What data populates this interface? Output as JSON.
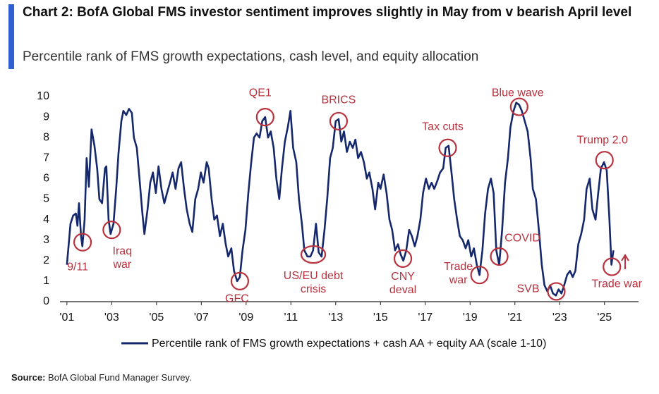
{
  "chart_data": {
    "type": "line",
    "title": "Chart 2: BofA Global FMS investor sentiment improves slightly in May from v bearish April level",
    "subtitle": "Percentile rank of FMS growth expectations, cash level, and equity allocation",
    "x": [
      2001.0,
      2001.16,
      2001.28,
      2001.4,
      2001.47,
      2001.54,
      2001.63,
      2001.69,
      2001.79,
      2001.88,
      2001.98,
      2002.1,
      2002.23,
      2002.35,
      2002.45,
      2002.57,
      2002.7,
      2002.76,
      2002.86,
      2002.95,
      2003.08,
      2003.2,
      2003.3,
      2003.43,
      2003.52,
      2003.65,
      2003.77,
      2003.9,
      2003.99,
      2004.12,
      2004.24,
      2004.37,
      2004.46,
      2004.6,
      2004.72,
      2004.84,
      2004.97,
      2005.09,
      2005.22,
      2005.35,
      2005.47,
      2005.6,
      2005.72,
      2005.85,
      2005.98,
      2006.1,
      2006.23,
      2006.35,
      2006.48,
      2006.6,
      2006.73,
      2006.86,
      2006.98,
      2007.1,
      2007.24,
      2007.33,
      2007.46,
      2007.58,
      2007.7,
      2007.83,
      2007.96,
      2008.09,
      2008.2,
      2008.34,
      2008.46,
      2008.6,
      2008.72,
      2008.84,
      2008.97,
      2009.1,
      2009.22,
      2009.35,
      2009.47,
      2009.6,
      2009.72,
      2009.85,
      2009.98,
      2010.1,
      2010.23,
      2010.35,
      2010.48,
      2010.6,
      2010.73,
      2010.86,
      2010.98,
      2011.1,
      2011.24,
      2011.36,
      2011.49,
      2011.6,
      2011.74,
      2011.87,
      2011.99,
      2012.12,
      2012.24,
      2012.37,
      2012.5,
      2012.62,
      2012.75,
      2012.87,
      2013.0,
      2013.13,
      2013.25,
      2013.37,
      2013.5,
      2013.63,
      2013.76,
      2013.88,
      2014.0,
      2014.13,
      2014.26,
      2014.39,
      2014.5,
      2014.64,
      2014.76,
      2014.9,
      2015.0,
      2015.14,
      2015.27,
      2015.4,
      2015.52,
      2015.65,
      2015.78,
      2015.9,
      2016.02,
      2016.15,
      2016.28,
      2016.4,
      2016.53,
      2016.65,
      2016.78,
      2016.9,
      2017.03,
      2017.16,
      2017.28,
      2017.4,
      2017.54,
      2017.66,
      2017.8,
      2017.91,
      2018.04,
      2018.17,
      2018.29,
      2018.42,
      2018.54,
      2018.67,
      2018.8,
      2018.92,
      2019.05,
      2019.17,
      2019.3,
      2019.42,
      2019.55,
      2019.67,
      2019.8,
      2019.93,
      2020.05,
      2020.17,
      2020.3,
      2020.43,
      2020.56,
      2020.69,
      2020.8,
      2020.94,
      2021.06,
      2021.19,
      2021.31,
      2021.44,
      2021.57,
      2021.7,
      2021.8,
      2021.94,
      2022.07,
      2022.2,
      2022.32,
      2022.45,
      2022.57,
      2022.7,
      2022.83,
      2022.95,
      2023.08,
      2023.2,
      2023.33,
      2023.46,
      2023.58,
      2023.7,
      2023.83,
      2023.96,
      2024.09,
      2024.2,
      2024.34,
      2024.46,
      2024.6,
      2024.72,
      2024.84,
      2024.98,
      2025.1,
      2025.22,
      2025.31,
      2025.4
    ],
    "series": [
      {
        "name": "Percentile rank of FMS growth expectations + cash AA + equity AA (scale 1-10)",
        "color": "#14286b",
        "values": [
          1.8,
          3.8,
          4.2,
          4.3,
          3.7,
          4.8,
          3.2,
          2.7,
          4.0,
          7.0,
          5.6,
          8.4,
          7.6,
          6.5,
          5.0,
          4.8,
          6.5,
          6.6,
          4.0,
          3.3,
          3.8,
          5.5,
          7.2,
          8.8,
          9.3,
          9.1,
          9.4,
          9.2,
          8.0,
          7.5,
          6.0,
          4.3,
          3.3,
          4.5,
          5.8,
          6.3,
          5.3,
          6.6,
          5.5,
          4.8,
          5.3,
          5.8,
          6.3,
          5.5,
          6.5,
          6.8,
          5.5,
          4.5,
          3.8,
          3.4,
          5.0,
          5.5,
          6.3,
          5.8,
          6.8,
          6.5,
          5.0,
          4.0,
          4.2,
          3.2,
          3.8,
          2.8,
          2.2,
          2.6,
          1.5,
          1.0,
          1.2,
          2.5,
          3.5,
          5.3,
          6.7,
          8.0,
          8.2,
          8.0,
          8.8,
          9.0,
          8.0,
          8.3,
          7.5,
          6.0,
          5.0,
          6.5,
          7.8,
          8.5,
          9.3,
          7.5,
          6.8,
          5.0,
          3.8,
          2.5,
          2.2,
          2.2,
          2.5,
          3.8,
          2.4,
          2.2,
          3.5,
          5.0,
          7.0,
          7.5,
          8.8,
          8.9,
          7.8,
          8.3,
          7.3,
          7.8,
          7.5,
          7.9,
          7.0,
          7.3,
          6.8,
          6.0,
          6.3,
          5.5,
          4.5,
          5.8,
          5.5,
          6.2,
          5.3,
          4.0,
          3.5,
          2.5,
          2.8,
          2.3,
          2.0,
          2.5,
          3.5,
          3.2,
          2.7,
          3.2,
          4.0,
          5.3,
          6.0,
          5.5,
          5.8,
          5.5,
          5.9,
          6.3,
          6.5,
          7.5,
          7.6,
          6.3,
          5.0,
          4.0,
          3.2,
          3.0,
          2.6,
          3.0,
          2.2,
          2.6,
          1.8,
          1.3,
          2.5,
          4.3,
          5.5,
          6.0,
          5.3,
          2.5,
          1.8,
          3.5,
          5.8,
          7.0,
          8.5,
          9.3,
          9.7,
          9.6,
          9.3,
          8.8,
          8.3,
          7.0,
          5.5,
          5.0,
          3.5,
          1.8,
          0.8,
          0.5,
          0.8,
          0.4,
          0.3,
          0.6,
          0.4,
          0.8,
          1.3,
          1.5,
          1.2,
          1.5,
          2.8,
          3.3,
          4.0,
          5.5,
          6.0,
          4.5,
          4.0,
          5.3,
          6.5,
          6.8,
          6.4,
          4.0,
          1.8,
          2.5
        ]
      }
    ],
    "xlim": [
      2000.69,
      2026.52
    ],
    "xticks": [
      {
        "value": 2001,
        "label": "'01"
      },
      {
        "value": 2003,
        "label": "'03"
      },
      {
        "value": 2005,
        "label": "'05"
      },
      {
        "value": 2007,
        "label": "'07"
      },
      {
        "value": 2009,
        "label": "'09"
      },
      {
        "value": 2011,
        "label": "'11"
      },
      {
        "value": 2013,
        "label": "'13"
      },
      {
        "value": 2015,
        "label": "'15"
      },
      {
        "value": 2017,
        "label": "'17"
      },
      {
        "value": 2019,
        "label": "'19"
      },
      {
        "value": 2021,
        "label": "'21"
      },
      {
        "value": 2023,
        "label": "'23"
      },
      {
        "value": 2025,
        "label": "'25"
      }
    ],
    "ylim": [
      0,
      10
    ],
    "yticks": [
      0,
      1,
      2,
      3,
      4,
      5,
      6,
      7,
      8,
      9,
      10
    ],
    "annotation_color": "#b8323e",
    "annotations": [
      {
        "text": "9/11",
        "x": 2001.7,
        "y": 2.9
      },
      {
        "text": "Iraq war",
        "x": 2003.0,
        "y": 3.5
      },
      {
        "text": "GFC",
        "x": 2008.72,
        "y": 1.0
      },
      {
        "text": "QE1",
        "x": 2009.85,
        "y": 9.0
      },
      {
        "text": "US/EU debt crisis",
        "x": 2012.0,
        "y": 2.3
      },
      {
        "text": "BRICS",
        "x": 2013.13,
        "y": 8.8
      },
      {
        "text": "CNY deval",
        "x": 2016.0,
        "y": 2.1
      },
      {
        "text": "Tax cuts",
        "x": 2018.0,
        "y": 7.5
      },
      {
        "text": "Trade war",
        "x": 2019.42,
        "y": 1.3
      },
      {
        "text": "COVID",
        "x": 2020.3,
        "y": 2.2
      },
      {
        "text": "Blue wave",
        "x": 2021.19,
        "y": 9.5
      },
      {
        "text": "SVB",
        "x": 2022.85,
        "y": 0.5
      },
      {
        "text": "Trump 2.0",
        "x": 2025.0,
        "y": 6.9
      },
      {
        "text": "Trade war",
        "x": 2025.33,
        "y": 1.7
      }
    ],
    "source": {
      "label": "Source:",
      "text": "BofA Global Fund Manager Survey."
    }
  }
}
